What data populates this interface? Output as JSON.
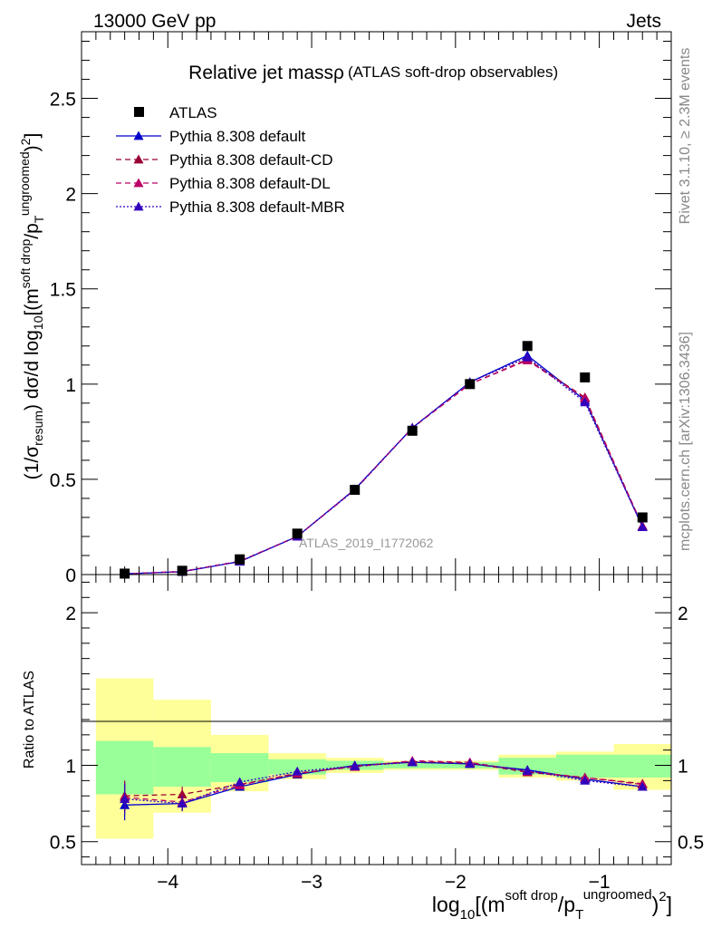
{
  "header": {
    "left": "13000 GeV pp",
    "right": "Jets"
  },
  "side_labels": {
    "rivet": "Rivet 3.1.10, ≥ 2.3M events",
    "source": "mcplots.cern.ch [arXiv:1306.3436]"
  },
  "colors": {
    "atlas": "#000000",
    "default": "#0000cc",
    "cd": "#990033",
    "dl": "#bb0066",
    "mbr": "#3300bb",
    "band_inner": "#99ff99",
    "band_outer": "#ffff99"
  },
  "chart_data": [
    {
      "type": "scatter",
      "title": "Relative jet massρ",
      "subtitle": "(ATLAS soft-drop observables)",
      "watermark": "ATLAS_2019_I1772062",
      "xlabel": "log10[(m^{soft drop}/p_T^{ungroomed})^2]",
      "ylabel": "(1/σresum) dσ/d log10[(m^{soft drop}/p_T^{ungroomed})^2]",
      "xlim": [
        -4.6,
        -0.5
      ],
      "ylim": [
        0,
        2.85
      ],
      "yticks": [
        "0",
        "0.5",
        "1",
        "1.5",
        "2",
        "2.5"
      ],
      "legend_position": "top-left",
      "grid": false,
      "x": [
        -4.3,
        -3.9,
        -3.5,
        -3.1,
        -2.7,
        -2.3,
        -1.9,
        -1.5,
        -1.1,
        -0.7
      ],
      "series": [
        {
          "name": "ATLAS",
          "values": [
            0.005,
            0.02,
            0.08,
            0.215,
            0.445,
            0.755,
            1.0,
            1.2,
            1.035,
            0.3
          ]
        },
        {
          "name": "Pythia 8.308 default",
          "values": [
            0.004,
            0.015,
            0.068,
            0.2,
            0.448,
            0.77,
            1.01,
            1.15,
            0.915,
            0.25
          ]
        },
        {
          "name": "Pythia 8.308 default-CD",
          "values": [
            0.004,
            0.016,
            0.07,
            0.2,
            0.445,
            0.77,
            1.0,
            1.13,
            0.93,
            0.255
          ]
        },
        {
          "name": "Pythia 8.308 default-DL",
          "values": [
            0.004,
            0.016,
            0.07,
            0.2,
            0.445,
            0.77,
            1.0,
            1.125,
            0.925,
            0.255
          ]
        },
        {
          "name": "Pythia 8.308 default-MBR",
          "values": [
            0.004,
            0.015,
            0.069,
            0.2,
            0.445,
            0.77,
            1.01,
            1.14,
            0.905,
            0.25
          ]
        }
      ]
    },
    {
      "type": "line",
      "ylabel": "Ratio to ATLAS",
      "xlim": [
        -4.6,
        -0.5
      ],
      "ylim": [
        0.35,
        2.25
      ],
      "yticks": [
        "0.5",
        "1",
        "2"
      ],
      "xticks": [
        "−4",
        "−3",
        "−2",
        "−1"
      ],
      "x": [
        -4.3,
        -3.9,
        -3.5,
        -3.1,
        -2.7,
        -2.3,
        -1.9,
        -1.5,
        -1.1,
        -0.7
      ],
      "bin_edges": [
        -4.5,
        -4.1,
        -3.7,
        -3.3,
        -2.9,
        -2.5,
        -2.1,
        -1.7,
        -1.3,
        -0.9,
        -0.5
      ],
      "band_inner": [
        [
          0.81,
          1.16
        ],
        [
          0.86,
          1.12
        ],
        [
          0.89,
          1.08
        ],
        [
          0.94,
          1.04
        ],
        [
          0.97,
          1.03
        ],
        [
          0.98,
          1.02
        ],
        [
          0.98,
          1.02
        ],
        [
          0.94,
          1.05
        ],
        [
          0.92,
          1.07
        ],
        [
          0.92,
          1.07
        ]
      ],
      "band_outer": [
        [
          0.52,
          1.57
        ],
        [
          0.69,
          1.43
        ],
        [
          0.83,
          1.2
        ],
        [
          0.91,
          1.08
        ],
        [
          0.95,
          1.05
        ],
        [
          0.97,
          1.03
        ],
        [
          0.97,
          1.03
        ],
        [
          0.92,
          1.07
        ],
        [
          0.9,
          1.09
        ],
        [
          0.84,
          1.14
        ]
      ],
      "series": [
        {
          "name": "Pythia 8.308 default",
          "values": [
            0.74,
            0.75,
            0.86,
            0.94,
            1.0,
            1.02,
            1.01,
            0.97,
            0.91,
            0.86
          ],
          "errors": [
            0.1,
            0.05,
            0.025,
            0.015,
            0.008,
            0.007,
            0.007,
            0.008,
            0.01,
            0.012
          ]
        },
        {
          "name": "Pythia 8.308 default-CD",
          "values": [
            0.8,
            0.81,
            0.875,
            0.945,
            0.995,
            1.025,
            1.015,
            0.955,
            0.92,
            0.88
          ],
          "errors": [
            0.1,
            0.05,
            0.025,
            0.015,
            0.008,
            0.007,
            0.007,
            0.008,
            0.01,
            0.012
          ]
        },
        {
          "name": "Pythia 8.308 default-DL",
          "values": [
            0.79,
            0.76,
            0.87,
            0.95,
            0.99,
            1.03,
            1.02,
            0.96,
            0.92,
            0.875
          ],
          "errors": [
            0.1,
            0.05,
            0.025,
            0.015,
            0.008,
            0.007,
            0.007,
            0.008,
            0.01,
            0.012
          ]
        },
        {
          "name": "Pythia 8.308 default-MBR",
          "values": [
            0.78,
            0.75,
            0.89,
            0.96,
            0.995,
            1.02,
            1.01,
            0.965,
            0.9,
            0.86
          ],
          "errors": [
            0.1,
            0.05,
            0.025,
            0.015,
            0.008,
            0.007,
            0.007,
            0.008,
            0.01,
            0.012
          ]
        }
      ]
    }
  ]
}
